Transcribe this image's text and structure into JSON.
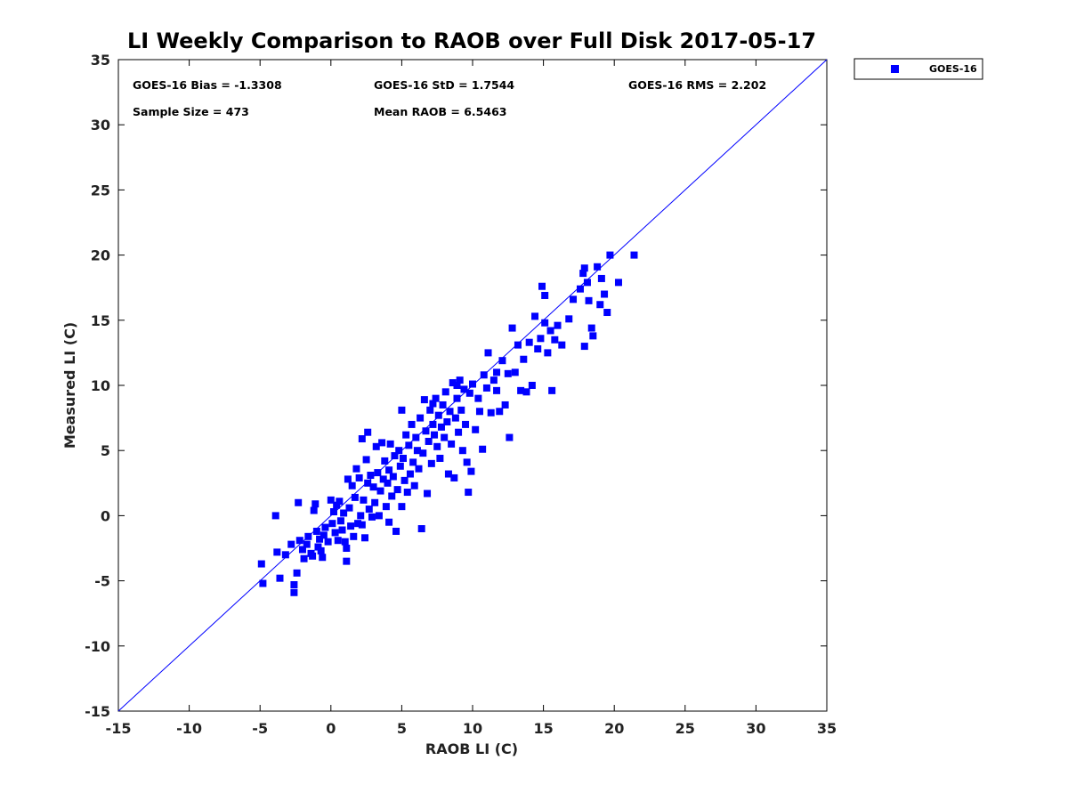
{
  "chart_data": {
    "type": "scatter",
    "title": "LI Weekly Comparison to RAOB over Full Disk 2017-05-17",
    "xlabel": "RAOB LI (C)",
    "ylabel": "Measured LI (C)",
    "xlim": [
      -15,
      35
    ],
    "ylim": [
      -15,
      35
    ],
    "xticks": [
      -15,
      -10,
      -5,
      0,
      5,
      10,
      15,
      20,
      25,
      30,
      35
    ],
    "yticks": [
      -15,
      -10,
      -5,
      0,
      5,
      10,
      15,
      20,
      25,
      30,
      35
    ],
    "reference_line": {
      "name": "1:1 line",
      "from": [
        -15,
        -15
      ],
      "to": [
        35,
        35
      ],
      "color": "#0000ff"
    },
    "legend": {
      "placement": "top-right outside",
      "entries": [
        "GOES-16"
      ]
    },
    "stats": {
      "bias": "GOES-16 Bias = -1.3308",
      "std": "GOES-16 StD = 1.7544",
      "rms": "GOES-16 RMS = 2.202",
      "sample_size": "Sample Size = 473",
      "mean_raob": "Mean RAOB = 6.5463"
    },
    "series": [
      {
        "name": "GOES-16",
        "color": "#0000ff",
        "marker": "square",
        "points": [
          [
            -4.9,
            -3.7
          ],
          [
            -4.8,
            -5.2
          ],
          [
            -3.9,
            0.0
          ],
          [
            -3.8,
            -2.8
          ],
          [
            -3.6,
            -4.8
          ],
          [
            -3.2,
            -3.0
          ],
          [
            -2.8,
            -2.2
          ],
          [
            -2.6,
            -5.3
          ],
          [
            -2.6,
            -5.9
          ],
          [
            -2.4,
            -4.4
          ],
          [
            -2.3,
            1.0
          ],
          [
            -2.2,
            -1.9
          ],
          [
            -2.0,
            -2.6
          ],
          [
            -1.9,
            -3.3
          ],
          [
            -1.7,
            -2.2
          ],
          [
            -1.6,
            -1.6
          ],
          [
            -1.4,
            -2.9
          ],
          [
            -1.3,
            -3.1
          ],
          [
            -1.2,
            0.4
          ],
          [
            -1.1,
            0.9
          ],
          [
            -1.0,
            -1.2
          ],
          [
            -0.9,
            -2.4
          ],
          [
            -0.8,
            -1.8
          ],
          [
            -0.7,
            -2.7
          ],
          [
            -0.6,
            -3.2
          ],
          [
            -0.5,
            -1.5
          ],
          [
            -0.4,
            -0.9
          ],
          [
            -0.2,
            -2.0
          ],
          [
            0.0,
            1.2
          ],
          [
            0.1,
            -0.6
          ],
          [
            0.2,
            0.3
          ],
          [
            0.3,
            -1.3
          ],
          [
            0.4,
            0.8
          ],
          [
            0.5,
            -1.9
          ],
          [
            0.6,
            1.1
          ],
          [
            0.7,
            -0.4
          ],
          [
            0.8,
            -1.1
          ],
          [
            0.9,
            0.2
          ],
          [
            1.0,
            -2.0
          ],
          [
            1.1,
            -3.5
          ],
          [
            1.1,
            -2.5
          ],
          [
            1.2,
            2.8
          ],
          [
            1.3,
            0.6
          ],
          [
            1.4,
            -0.8
          ],
          [
            1.5,
            2.3
          ],
          [
            1.6,
            -1.6
          ],
          [
            1.7,
            1.4
          ],
          [
            1.8,
            3.6
          ],
          [
            1.9,
            -0.6
          ],
          [
            2.0,
            2.9
          ],
          [
            2.1,
            0.0
          ],
          [
            2.2,
            5.9
          ],
          [
            2.2,
            -0.7
          ],
          [
            2.3,
            1.2
          ],
          [
            2.4,
            -1.7
          ],
          [
            2.5,
            4.3
          ],
          [
            2.6,
            6.4
          ],
          [
            2.6,
            2.5
          ],
          [
            2.7,
            0.5
          ],
          [
            2.8,
            3.1
          ],
          [
            2.9,
            -0.1
          ],
          [
            3.0,
            2.2
          ],
          [
            3.1,
            1.0
          ],
          [
            3.2,
            5.3
          ],
          [
            3.3,
            3.3
          ],
          [
            3.4,
            0.0
          ],
          [
            3.5,
            1.9
          ],
          [
            3.6,
            5.6
          ],
          [
            3.7,
            2.8
          ],
          [
            3.8,
            4.2
          ],
          [
            3.9,
            0.7
          ],
          [
            4.0,
            2.5
          ],
          [
            4.1,
            -0.5
          ],
          [
            4.1,
            3.5
          ],
          [
            4.2,
            5.5
          ],
          [
            4.3,
            1.5
          ],
          [
            4.4,
            3.0
          ],
          [
            4.5,
            4.6
          ],
          [
            4.6,
            -1.2
          ],
          [
            4.7,
            2.0
          ],
          [
            4.8,
            5.0
          ],
          [
            4.9,
            3.8
          ],
          [
            5.0,
            0.7
          ],
          [
            5.0,
            8.1
          ],
          [
            5.1,
            4.4
          ],
          [
            5.2,
            2.7
          ],
          [
            5.3,
            6.2
          ],
          [
            5.4,
            1.8
          ],
          [
            5.5,
            5.4
          ],
          [
            5.6,
            3.2
          ],
          [
            5.7,
            7.0
          ],
          [
            5.8,
            4.1
          ],
          [
            5.9,
            2.3
          ],
          [
            6.0,
            6.0
          ],
          [
            6.1,
            5.0
          ],
          [
            6.2,
            3.6
          ],
          [
            6.3,
            7.5
          ],
          [
            6.4,
            -1.0
          ],
          [
            6.5,
            4.8
          ],
          [
            6.6,
            8.9
          ],
          [
            6.7,
            6.5
          ],
          [
            6.8,
            1.7
          ],
          [
            6.9,
            5.7
          ],
          [
            7.0,
            8.1
          ],
          [
            7.1,
            4.0
          ],
          [
            7.2,
            7.0
          ],
          [
            7.3,
            6.2
          ],
          [
            7.4,
            9.0
          ],
          [
            7.5,
            5.3
          ],
          [
            7.6,
            7.7
          ],
          [
            7.7,
            4.4
          ],
          [
            7.8,
            6.8
          ],
          [
            7.9,
            8.5
          ],
          [
            8.0,
            6.0
          ],
          [
            8.1,
            9.5
          ],
          [
            8.2,
            7.2
          ],
          [
            8.3,
            3.2
          ],
          [
            8.4,
            8.0
          ],
          [
            8.5,
            5.5
          ],
          [
            8.6,
            10.2
          ],
          [
            8.7,
            2.9
          ],
          [
            8.8,
            7.5
          ],
          [
            8.9,
            9.0
          ],
          [
            9.0,
            6.4
          ],
          [
            9.1,
            10.4
          ],
          [
            9.2,
            8.1
          ],
          [
            9.3,
            5.0
          ],
          [
            9.4,
            9.7
          ],
          [
            9.5,
            7.0
          ],
          [
            9.6,
            4.1
          ],
          [
            9.7,
            1.8
          ],
          [
            9.8,
            9.4
          ],
          [
            9.9,
            3.4
          ],
          [
            10.0,
            10.1
          ],
          [
            10.2,
            6.6
          ],
          [
            10.4,
            9.0
          ],
          [
            10.5,
            8.0
          ],
          [
            10.7,
            5.1
          ],
          [
            10.8,
            10.8
          ],
          [
            11.0,
            9.8
          ],
          [
            11.1,
            12.5
          ],
          [
            11.3,
            7.9
          ],
          [
            11.5,
            10.4
          ],
          [
            11.7,
            9.6
          ],
          [
            11.9,
            8.0
          ],
          [
            12.1,
            11.9
          ],
          [
            12.3,
            8.5
          ],
          [
            12.5,
            10.9
          ],
          [
            12.6,
            6.0
          ],
          [
            12.8,
            14.4
          ],
          [
            13.0,
            11.0
          ],
          [
            13.2,
            13.1
          ],
          [
            13.4,
            9.6
          ],
          [
            13.6,
            12.0
          ],
          [
            13.8,
            9.5
          ],
          [
            14.0,
            13.3
          ],
          [
            14.2,
            10.0
          ],
          [
            14.4,
            15.3
          ],
          [
            14.6,
            12.8
          ],
          [
            14.8,
            13.6
          ],
          [
            14.9,
            17.6
          ],
          [
            15.1,
            14.8
          ],
          [
            15.3,
            12.5
          ],
          [
            15.5,
            14.2
          ],
          [
            15.6,
            9.6
          ],
          [
            15.8,
            13.5
          ],
          [
            16.0,
            14.6
          ],
          [
            16.3,
            13.1
          ],
          [
            16.8,
            15.1
          ],
          [
            17.1,
            16.6
          ],
          [
            17.6,
            17.4
          ],
          [
            17.8,
            18.6
          ],
          [
            17.9,
            13.0
          ],
          [
            18.1,
            17.9
          ],
          [
            18.2,
            16.5
          ],
          [
            18.4,
            14.4
          ],
          [
            18.5,
            13.8
          ],
          [
            18.8,
            19.1
          ],
          [
            19.0,
            16.2
          ],
          [
            19.1,
            18.2
          ],
          [
            19.3,
            17.0
          ],
          [
            19.5,
            15.6
          ],
          [
            19.7,
            20.0
          ],
          [
            20.3,
            17.9
          ],
          [
            21.4,
            20.0
          ],
          [
            15.1,
            16.9
          ],
          [
            17.9,
            19.0
          ],
          [
            7.2,
            8.6
          ],
          [
            8.9,
            10.0
          ],
          [
            11.7,
            11.0
          ]
        ]
      }
    ]
  }
}
